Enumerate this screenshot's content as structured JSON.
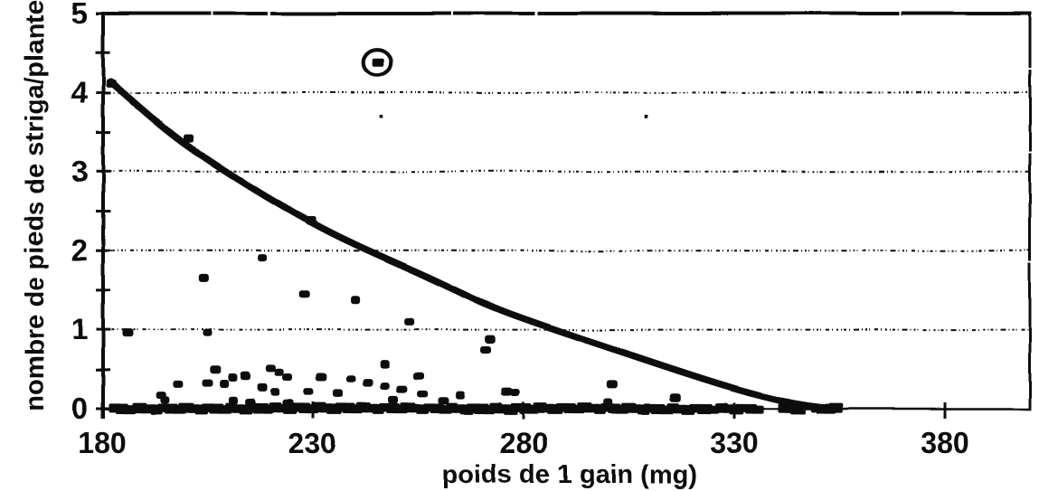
{
  "chart_data": {
    "type": "scatter",
    "title": "",
    "xlabel": "poids de 1 gain (mg)",
    "ylabel": "nombre de pieds de striga/plante",
    "xlim": [
      180,
      400
    ],
    "ylim": [
      0,
      5
    ],
    "x_ticks": [
      180,
      230,
      280,
      330,
      380
    ],
    "y_ticks": [
      0,
      1,
      2,
      3,
      4,
      5
    ],
    "y_minor_step": 0.5,
    "grid_y": [
      1,
      2,
      3,
      4
    ],
    "ink_color": "#0a0a0a",
    "bg_color": "#ffffff",
    "legend": null,
    "outlier": {
      "x": 245.5,
      "y": 4.38,
      "circled": true
    },
    "curve_points": [
      [
        181.9,
        4.14
      ],
      [
        201,
        3.3
      ],
      [
        229.8,
        2.35
      ],
      [
        256.6,
        1.68
      ],
      [
        275.9,
        1.22
      ],
      [
        306,
        0.67
      ],
      [
        327.4,
        0.3
      ],
      [
        342.4,
        0.09
      ],
      [
        352.3,
        0.01
      ]
    ],
    "curve_markers": [
      [
        182,
        4.12
      ],
      [
        200.5,
        3.42
      ],
      [
        229.5,
        2.38
      ]
    ],
    "specks": [
      [
        246.3,
        3.71
      ],
      [
        309.2,
        3.7
      ]
    ],
    "points": [
      [
        218,
        1.91
      ],
      [
        204,
        1.66
      ],
      [
        228,
        1.45
      ],
      [
        240,
        1.37
      ],
      [
        253,
        1.1
      ],
      [
        186,
        0.96
      ],
      [
        205,
        0.96
      ],
      [
        272,
        0.88
      ],
      [
        271,
        0.75
      ],
      [
        247,
        0.57
      ],
      [
        220,
        0.51
      ],
      [
        207,
        0.5
      ],
      [
        222,
        0.46
      ],
      [
        214,
        0.42
      ],
      [
        255,
        0.42
      ],
      [
        211,
        0.4
      ],
      [
        224,
        0.4
      ],
      [
        232,
        0.4
      ],
      [
        239,
        0.38
      ],
      [
        243,
        0.33
      ],
      [
        205,
        0.33
      ],
      [
        209,
        0.32
      ],
      [
        198,
        0.31
      ],
      [
        301,
        0.31
      ],
      [
        247,
        0.29
      ],
      [
        218,
        0.27
      ],
      [
        251,
        0.25
      ],
      [
        221,
        0.21
      ],
      [
        229,
        0.21
      ],
      [
        276,
        0.21
      ],
      [
        278,
        0.2
      ],
      [
        236,
        0.19
      ],
      [
        256,
        0.19
      ],
      [
        265,
        0.17
      ],
      [
        194,
        0.17
      ],
      [
        316,
        0.14
      ],
      [
        195,
        0.11
      ],
      [
        249,
        0.11
      ],
      [
        261,
        0.1
      ],
      [
        211,
        0.1
      ],
      [
        215,
        0.08
      ],
      [
        224,
        0.06
      ],
      [
        300,
        0.08
      ]
    ],
    "zero_points": [
      183,
      184.8,
      186.5,
      189,
      191,
      193,
      194.8,
      196.5,
      198.2,
      200,
      201.8,
      203.5,
      205.2,
      207,
      208.8,
      210.5,
      212.2,
      214,
      215.8,
      217.5,
      219.2,
      221,
      222.8,
      224.5,
      226.2,
      228,
      229.8,
      231.5,
      233.2,
      235,
      236.8,
      238.5,
      240.2,
      242,
      243.8,
      245.5,
      247.2,
      249,
      250.8,
      252.5,
      254.2,
      256,
      257.8,
      259.5,
      261.2,
      263,
      264.8,
      266.5,
      268.2,
      270,
      271.8,
      273.5,
      275.2,
      277,
      278.8,
      280.5,
      282.2,
      284,
      285.8,
      287.5,
      289.2,
      291,
      292.8,
      294.5,
      296.2,
      298,
      299.8,
      301.5,
      303.2,
      305,
      306.8,
      308.5,
      310.2,
      312,
      313.8,
      315.5,
      317.2,
      319,
      321,
      323,
      325,
      327,
      328.8,
      330.5,
      332.2,
      334,
      335.5,
      342,
      343.5,
      345,
      349.5,
      351,
      352.5,
      354
    ]
  }
}
